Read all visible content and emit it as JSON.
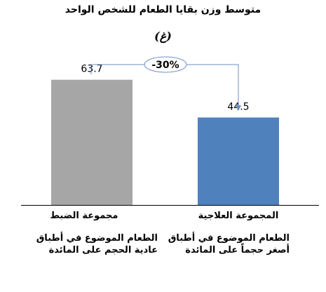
{
  "chart_data": {
    "type": "bar",
    "title": "متوسط وزن بقايا الطعام للشخص الواحد",
    "unit": "(غ)",
    "categories": [
      "مجموعة الضبط",
      "المجموعة العلاجية"
    ],
    "values": [
      63.7,
      44.5
    ],
    "value_labels": [
      "63.7",
      "44.5"
    ],
    "descriptions": [
      [
        "الطعام الموضوع في أطباق",
        "عادية الحجم على المائدة"
      ],
      [
        "الطعام الموضوع في أطباق",
        "أصغر حجماً على المائدة"
      ]
    ],
    "colors": [
      "#a6a6a6",
      "#4f81bd"
    ],
    "change_annotation": "-30%",
    "ylim": [
      0,
      75
    ],
    "grid": false,
    "legend": "none"
  }
}
